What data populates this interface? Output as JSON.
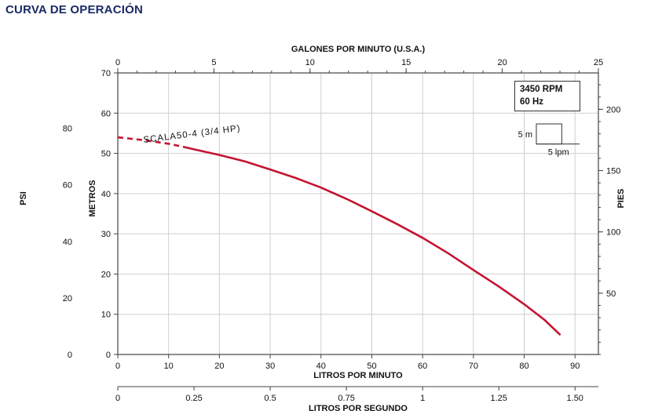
{
  "page_title": "CURVA DE OPERACIÓN",
  "chart_data": {
    "type": "line",
    "title": "CURVA DE OPERACIÓN",
    "grid": true,
    "series": [
      {
        "name": "SCALA50-4 (3/4 HP)",
        "color": "#c41430",
        "dashed_until_lpm": 13,
        "points_lpm_m": [
          [
            0,
            54
          ],
          [
            5,
            53.3
          ],
          [
            10,
            52.4
          ],
          [
            13,
            51.6
          ],
          [
            15,
            51.0
          ],
          [
            20,
            49.6
          ],
          [
            25,
            48.0
          ],
          [
            30,
            46.0
          ],
          [
            35,
            43.9
          ],
          [
            40,
            41.5
          ],
          [
            45,
            38.7
          ],
          [
            50,
            35.6
          ],
          [
            55,
            32.4
          ],
          [
            60,
            29.0
          ],
          [
            65,
            25.2
          ],
          [
            70,
            21.0
          ],
          [
            75,
            16.9
          ],
          [
            80,
            12.5
          ],
          [
            84,
            8.6
          ],
          [
            87,
            5.0
          ]
        ]
      }
    ],
    "axes": {
      "x_bottom": {
        "label": "LITROS POR MINUTO",
        "unit": "lpm",
        "min": 0,
        "max": 94.6,
        "ticks": [
          0,
          10,
          20,
          30,
          40,
          50,
          60,
          70,
          80,
          90
        ]
      },
      "x_top": {
        "label": "GALONES POR MINUTO (U.S.A.)",
        "unit": "gpm",
        "min": 0,
        "max": 25,
        "ticks": [
          0,
          5,
          10,
          15,
          20,
          25
        ],
        "minor_step": 1
      },
      "x_secondary": {
        "label": "LITROS POR SEGUNDO",
        "unit": "l/s",
        "ticks": [
          0,
          0.25,
          0.5,
          0.75,
          1,
          1.25,
          1.5
        ],
        "tick_labels": [
          "0",
          "0.25",
          "0.5",
          "0.75",
          "1",
          "1.25",
          "1.50"
        ],
        "lpm_per_unit": 60
      },
      "y_left": {
        "label": "METROS",
        "unit": "m",
        "min": 0,
        "max": 70,
        "ticks": [
          0,
          10,
          20,
          30,
          40,
          50,
          60,
          70
        ]
      },
      "y_psi": {
        "label": "PSI",
        "unit": "psi",
        "ticks": [
          0,
          20,
          40,
          60,
          80
        ],
        "m_per_unit": 0.70307
      },
      "y_right": {
        "label": "PIES",
        "unit": "ft",
        "ticks": [
          50,
          100,
          150,
          200
        ],
        "m_per_unit": 0.3048,
        "minor_step_ft": 10
      }
    },
    "legend": {
      "line1": "3450 RPM",
      "line2": "60 Hz"
    },
    "scale_indicator": {
      "height_label": "5 m",
      "width_label": "5 lpm",
      "w_lpm": 5,
      "h_m": 5
    }
  }
}
